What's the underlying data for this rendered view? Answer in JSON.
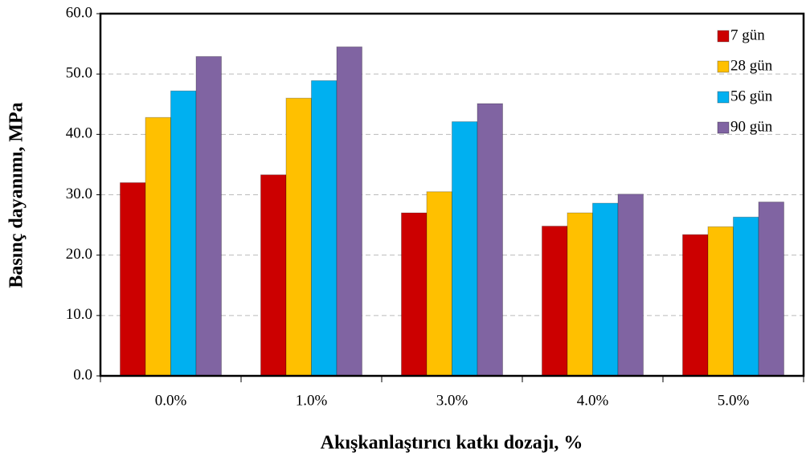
{
  "chart_data": {
    "type": "bar",
    "xlabel": "Akışkanlaştırıcı katkı dozajı, %",
    "ylabel": "Basınç dayanımı, MPa",
    "categories": [
      "0.0%",
      "1.0%",
      "3.0%",
      "4.0%",
      "5.0%"
    ],
    "series": [
      {
        "name": "7 gün",
        "color": "#cc0000",
        "values": [
          32.0,
          33.3,
          27.0,
          24.8,
          23.4
        ]
      },
      {
        "name": "28 gün",
        "color": "#ffc000",
        "values": [
          42.8,
          46.0,
          30.5,
          27.0,
          24.7
        ]
      },
      {
        "name": "56 gün",
        "color": "#00b0f0",
        "values": [
          47.2,
          48.9,
          42.1,
          28.6,
          26.3
        ]
      },
      {
        "name": "90 gün",
        "color": "#8064a2",
        "values": [
          52.9,
          54.5,
          45.1,
          30.1,
          28.8
        ]
      }
    ],
    "ylim": [
      0,
      60
    ],
    "yticks": [
      {
        "value": 0,
        "label": "0.0"
      },
      {
        "value": 10,
        "label": "10.0"
      },
      {
        "value": 20,
        "label": "20.0"
      },
      {
        "value": 30,
        "label": "30.0"
      },
      {
        "value": 40,
        "label": "40.0"
      },
      {
        "value": 50,
        "label": "50.0"
      },
      {
        "value": 60,
        "label": "60.0"
      }
    ],
    "grid": true,
    "legend": "upper right"
  }
}
